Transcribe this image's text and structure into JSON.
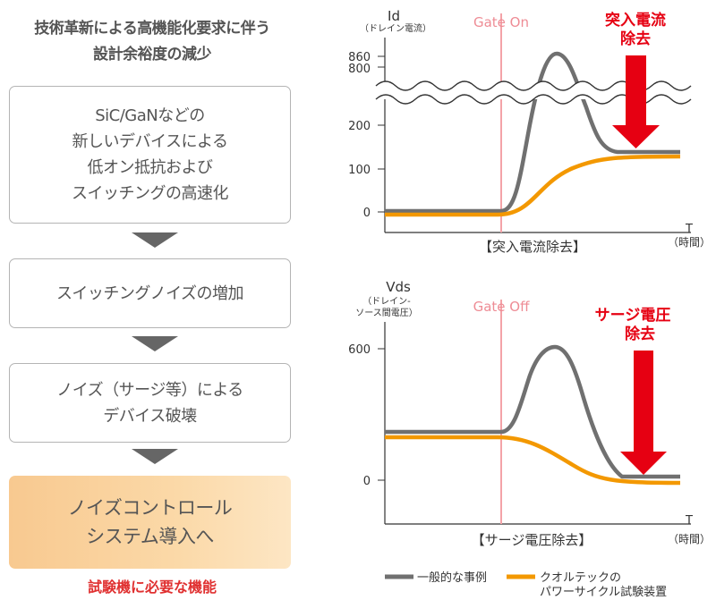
{
  "left": {
    "heading_line1": "技術革新による高機能化要求に伴う",
    "heading_line2": "設計余裕度の減少",
    "box1_lines": [
      "SiC/GaNなどの",
      "新しいデバイスによる",
      "低オン抵抗および",
      "スイッチングの高速化"
    ],
    "box2_lines": [
      "スイッチングノイズの増加"
    ],
    "box3_lines": [
      "ノイズ（サージ等）による",
      "デバイス破壊"
    ],
    "box4_lines": [
      "ノイズコントロール",
      "システム導入へ"
    ],
    "footer": "試験機に必要な機能"
  },
  "top_chart": {
    "ylabel": "Id",
    "ylabel_sub": "（ドレイン電流）",
    "gate_label": "Gate On",
    "annotation_line1": "突入電流",
    "annotation_line2": "除去",
    "caption": "【突入電流除去】",
    "ticks": [
      "860",
      "800",
      "200",
      "100",
      "0"
    ],
    "x_axis_label": "T",
    "x_axis_sub": "（時間）"
  },
  "bottom_chart": {
    "ylabel": "Vds",
    "ylabel_sub1": "（ドレイン-",
    "ylabel_sub2": "ソース間電圧）",
    "gate_label": "Gate Off",
    "annotation_line1": "サージ電圧",
    "annotation_line2": "除去",
    "caption": "【サージ電圧除去】",
    "ticks": [
      "600",
      "0"
    ],
    "x_axis_label": "T",
    "x_axis_sub": "（時間）"
  },
  "legend": {
    "general_label": "一般的な事例",
    "ours_line1": "クオルテックの",
    "ours_line2": "パワーサイクル試験装置"
  },
  "colors": {
    "general_line": "#707070",
    "ours_line": "#f39800",
    "gate_line": "#f4a3a8",
    "gate_text": "#ee8c95",
    "annotation": "#e60012",
    "arrow": "#e60012"
  },
  "chart_data": [
    {
      "type": "line",
      "title": "【突入電流除去】",
      "ylabel": "Id（ドレイン電流）",
      "xlabel": "T（時間）",
      "series": [
        {
          "name": "一般的な事例",
          "shape": "inrush spike",
          "values": [
            0,
            0,
            0,
            860,
            130,
            130
          ]
        },
        {
          "name": "クオルテックのパワーサイクル試験装置",
          "shape": "smooth rise",
          "values": [
            0,
            0,
            0,
            60,
            120,
            120
          ]
        }
      ],
      "y_ticks": [
        0,
        100,
        200,
        800,
        860
      ]
    },
    {
      "type": "line",
      "title": "【サージ電圧除去】",
      "ylabel": "Vds（ドレイン-ソース間電圧）",
      "xlabel": "T（時間）",
      "series": [
        {
          "name": "一般的な事例",
          "shape": "surge spike then drop",
          "values": [
            230,
            230,
            230,
            600,
            0,
            0
          ]
        },
        {
          "name": "クオルテックのパワーサイクル試験装置",
          "shape": "smooth fall",
          "values": [
            200,
            200,
            200,
            100,
            0,
            0
          ]
        }
      ],
      "y_ticks": [
        0,
        600
      ]
    }
  ]
}
